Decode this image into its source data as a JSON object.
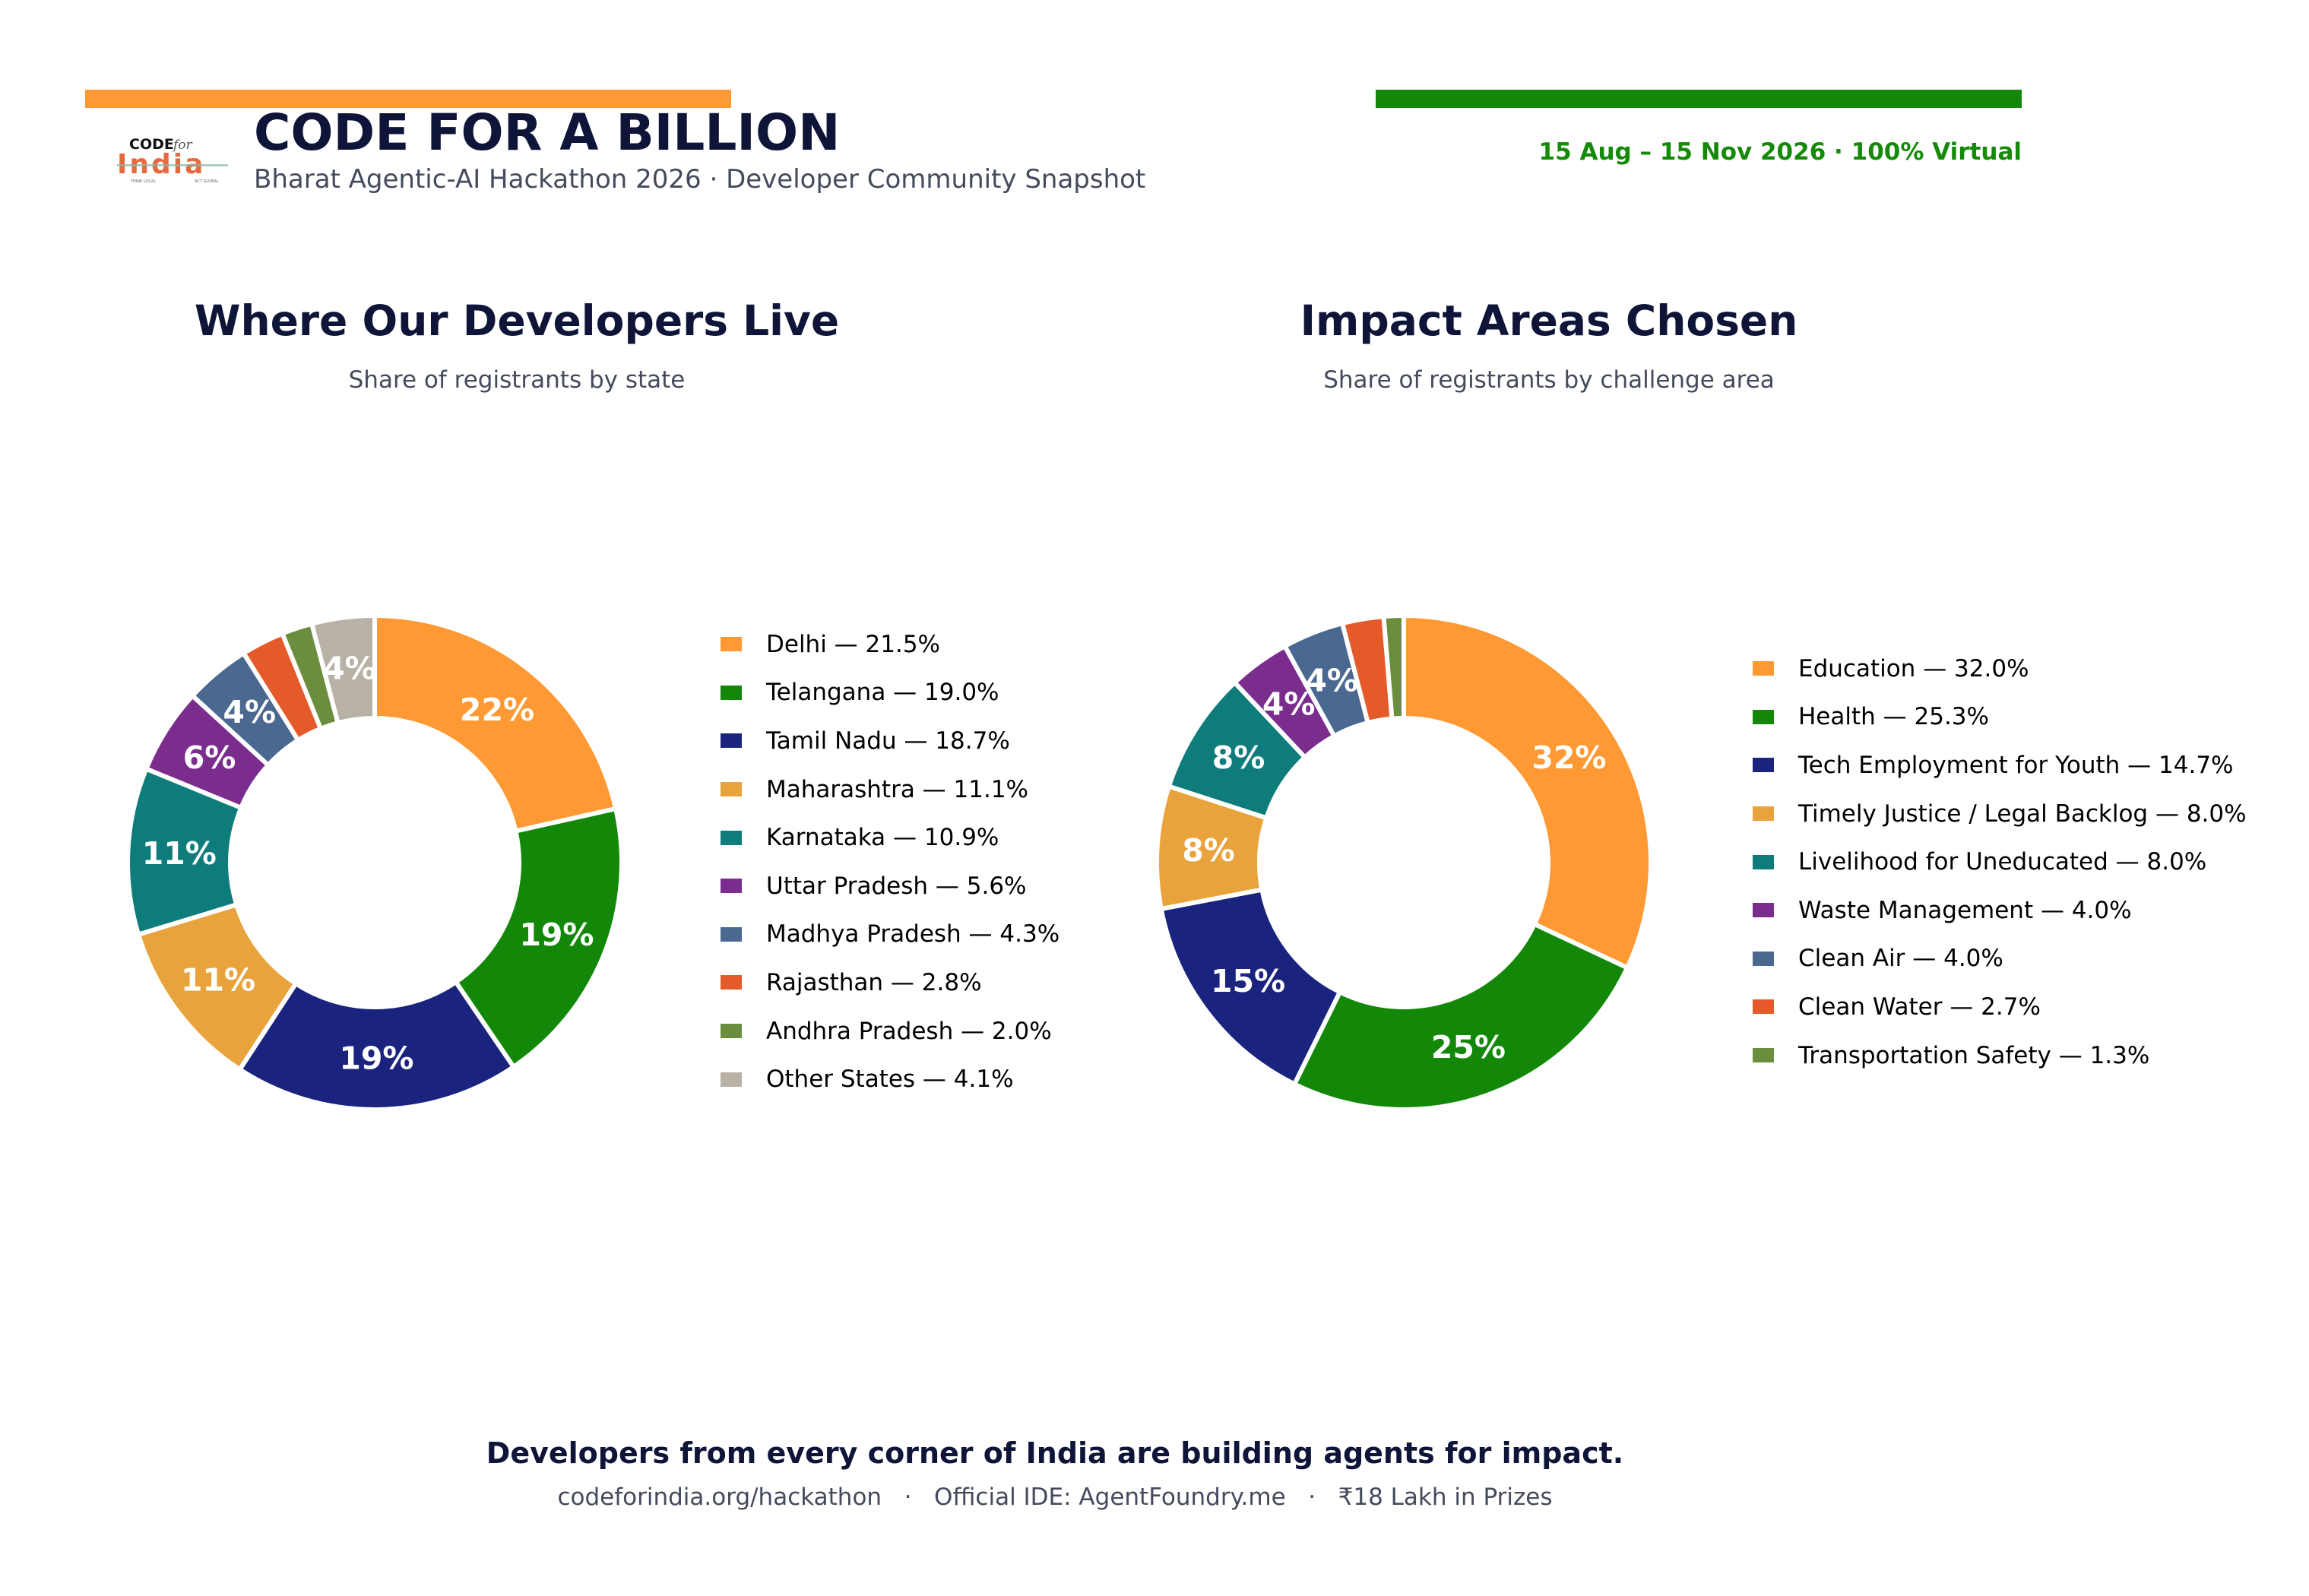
{
  "header": {
    "title": "CODE FOR A BILLION",
    "subtitle": "Bharat Agentic-AI Hackathon 2026  ·  Developer Community Snapshot",
    "event_dates": "15 Aug – 15 Nov 2026  ·  100% Virtual",
    "accent_saffron": "#ff9933",
    "accent_green": "#138808",
    "logo": {
      "top_text": "CODE",
      "script_text": "for",
      "main_text": "India",
      "tag_left": "THINK LOCAL",
      "tag_right": "ACT GLOBAL"
    }
  },
  "chart_data": [
    {
      "type": "pie",
      "donut": true,
      "title": "Where Our Developers Live",
      "subtitle": "Share of registrants by state",
      "legend_position": "right",
      "slices": [
        {
          "label": "Delhi",
          "value": 21.5,
          "legend_text": "Delhi  —  21.5%",
          "data_label": "22%",
          "color": "#ff9933"
        },
        {
          "label": "Telangana",
          "value": 19.0,
          "legend_text": "Telangana  —  19.0%",
          "data_label": "19%",
          "color": "#138808"
        },
        {
          "label": "Tamil Nadu",
          "value": 18.7,
          "legend_text": "Tamil Nadu  —  18.7%",
          "data_label": "19%",
          "color": "#1a237e"
        },
        {
          "label": "Maharashtra",
          "value": 11.1,
          "legend_text": "Maharashtra  —  11.1%",
          "data_label": "11%",
          "color": "#e8a33c"
        },
        {
          "label": "Karnataka",
          "value": 10.9,
          "legend_text": "Karnataka  —  10.9%",
          "data_label": "11%",
          "color": "#0e7c7b"
        },
        {
          "label": "Uttar Pradesh",
          "value": 5.6,
          "legend_text": "Uttar Pradesh  —  5.6%",
          "data_label": "6%",
          "color": "#7b2d8e"
        },
        {
          "label": "Madhya Pradesh",
          "value": 4.3,
          "legend_text": "Madhya Pradesh  —  4.3%",
          "data_label": "4%",
          "color": "#4a6890"
        },
        {
          "label": "Rajasthan",
          "value": 2.8,
          "legend_text": "Rajasthan  —  2.8%",
          "data_label": "",
          "color": "#e55a2b"
        },
        {
          "label": "Andhra Pradesh",
          "value": 2.0,
          "legend_text": "Andhra Pradesh  —  2.0%",
          "data_label": "",
          "color": "#6b8e3e"
        },
        {
          "label": "Other States",
          "value": 4.1,
          "legend_text": "Other States  —  4.1%",
          "data_label": "4%",
          "color": "#b8b2a6"
        }
      ]
    },
    {
      "type": "pie",
      "donut": true,
      "title": "Impact Areas Chosen",
      "subtitle": "Share of registrants by challenge area",
      "legend_position": "right",
      "slices": [
        {
          "label": "Education",
          "value": 32.0,
          "legend_text": "Education  —  32.0%",
          "data_label": "32%",
          "color": "#ff9933"
        },
        {
          "label": "Health",
          "value": 25.3,
          "legend_text": "Health  —  25.3%",
          "data_label": "25%",
          "color": "#138808"
        },
        {
          "label": "Tech Employment for Youth",
          "value": 14.7,
          "legend_text": "Tech Employment for Youth  —  14.7%",
          "data_label": "15%",
          "color": "#1a237e"
        },
        {
          "label": "Timely Justice / Legal Backlog",
          "value": 8.0,
          "legend_text": "Timely Justice / Legal Backlog  —  8.0%",
          "data_label": "8%",
          "color": "#e8a33c"
        },
        {
          "label": "Livelihood for Uneducated",
          "value": 8.0,
          "legend_text": "Livelihood for Uneducated  —  8.0%",
          "data_label": "8%",
          "color": "#0e7c7b"
        },
        {
          "label": "Waste Management",
          "value": 4.0,
          "legend_text": "Waste Management  —  4.0%",
          "data_label": "4%",
          "color": "#7b2d8e"
        },
        {
          "label": "Clean Air",
          "value": 4.0,
          "legend_text": "Clean Air  —  4.0%",
          "data_label": "4%",
          "color": "#4a6890"
        },
        {
          "label": "Clean Water",
          "value": 2.7,
          "legend_text": "Clean Water  —  2.7%",
          "data_label": "",
          "color": "#e55a2b"
        },
        {
          "label": "Transportation Safety",
          "value": 1.3,
          "legend_text": "Transportation Safety  —  1.3%",
          "data_label": "",
          "color": "#6b8e3e"
        }
      ]
    }
  ],
  "footer": {
    "tagline": "Developers from every corner of India are building agents for impact.",
    "links": "codeforindia.org/hackathon   ·   Official IDE: AgentFoundry.me   ·   ₹18 Lakh in Prizes"
  }
}
